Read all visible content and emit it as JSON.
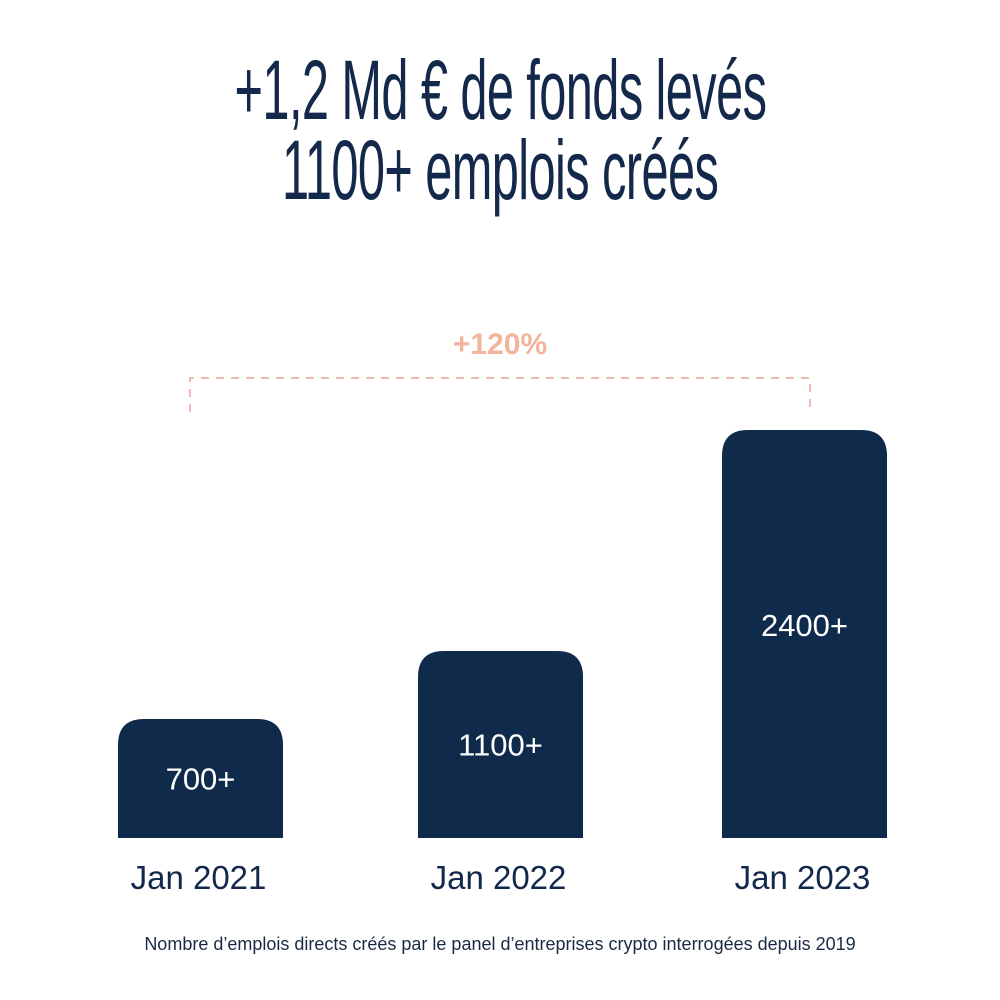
{
  "header": {
    "line1": "+1,2 Md € de fonds levés",
    "line2": "1100+ emplois créés"
  },
  "chart_data": {
    "type": "bar",
    "categories": [
      "Jan 2021",
      "Jan 2022",
      "Jan 2023"
    ],
    "values": [
      700,
      1100,
      2400
    ],
    "data_labels": [
      "700+",
      "1100+",
      "2400+"
    ],
    "annotation": "+120%",
    "ylim": [
      0,
      2400
    ],
    "grid": false,
    "xlabel": "",
    "ylabel": "",
    "bar_color": "#0f2a4a",
    "annotation_color": "#f2b49a"
  },
  "footnote": "Nombre d’emplois directs créés par le panel d’entreprises crypto interrogées depuis 2019"
}
